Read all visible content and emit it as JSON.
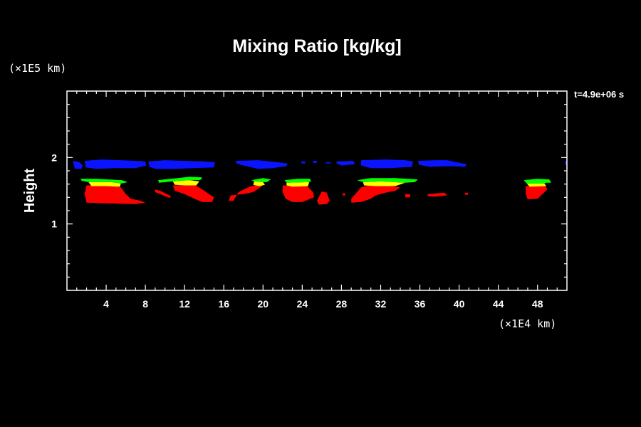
{
  "chart_data": {
    "type": "heatmap",
    "title": "Mixing Ratio [kg/kg]",
    "ylabel": "Height",
    "x_units": "(×1E4 km)",
    "y_units": "(×1E5 km)",
    "time_label": "t=4.9e+06 s",
    "xlim": [
      0,
      51
    ],
    "ylim": [
      0,
      3
    ],
    "x_ticks": [
      4,
      8,
      12,
      16,
      20,
      24,
      28,
      32,
      36,
      40,
      44,
      48
    ],
    "y_ticks": [
      1,
      2
    ],
    "colors": {
      "background": "#000000",
      "axes": "#ffffff",
      "level_blue": "#0a14ff",
      "level_red": "#ff0000",
      "level_yellow": "#ffff00",
      "level_green": "#00ff00"
    },
    "regions": [
      {
        "color": "#0a14ff",
        "polygon": [
          [
            0.6,
            1.95
          ],
          [
            1.3,
            1.93
          ],
          [
            1.6,
            1.88
          ],
          [
            1.5,
            1.83
          ],
          [
            0.8,
            1.83
          ]
        ]
      },
      {
        "color": "#0a14ff",
        "polygon": [
          [
            1.8,
            1.95
          ],
          [
            3.5,
            1.97
          ],
          [
            5.5,
            1.96
          ],
          [
            7.0,
            1.95
          ],
          [
            8.0,
            1.94
          ],
          [
            8.1,
            1.88
          ],
          [
            7.0,
            1.84
          ],
          [
            5.0,
            1.84
          ],
          [
            3.0,
            1.83
          ],
          [
            1.9,
            1.85
          ]
        ]
      },
      {
        "color": "#0a14ff",
        "polygon": [
          [
            8.3,
            1.94
          ],
          [
            10.0,
            1.96
          ],
          [
            12.0,
            1.95
          ],
          [
            14.0,
            1.94
          ],
          [
            15.1,
            1.93
          ],
          [
            15.0,
            1.85
          ],
          [
            13.0,
            1.84
          ],
          [
            11.0,
            1.83
          ],
          [
            9.0,
            1.83
          ],
          [
            8.4,
            1.86
          ]
        ]
      },
      {
        "color": "#0a14ff",
        "polygon": [
          [
            17.2,
            1.95
          ],
          [
            19.5,
            1.96
          ],
          [
            21.5,
            1.93
          ],
          [
            22.5,
            1.91
          ],
          [
            22.4,
            1.87
          ],
          [
            21.0,
            1.84
          ],
          [
            19.5,
            1.83
          ],
          [
            18.0,
            1.88
          ],
          [
            17.3,
            1.91
          ]
        ]
      },
      {
        "color": "#0a14ff",
        "polygon": [
          [
            23.9,
            1.94
          ],
          [
            24.3,
            1.94
          ],
          [
            24.3,
            1.91
          ],
          [
            23.9,
            1.91
          ]
        ]
      },
      {
        "color": "#0a14ff",
        "polygon": [
          [
            25.1,
            1.95
          ],
          [
            25.5,
            1.95
          ],
          [
            25.5,
            1.92
          ],
          [
            25.1,
            1.92
          ]
        ]
      },
      {
        "color": "#0a14ff",
        "polygon": [
          [
            26.4,
            1.93
          ],
          [
            26.9,
            1.93
          ],
          [
            26.9,
            1.91
          ],
          [
            26.4,
            1.91
          ]
        ]
      },
      {
        "color": "#0a14ff",
        "polygon": [
          [
            27.5,
            1.94
          ],
          [
            29.2,
            1.95
          ],
          [
            29.4,
            1.9
          ],
          [
            28.0,
            1.88
          ],
          [
            27.5,
            1.91
          ]
        ]
      },
      {
        "color": "#0a14ff",
        "polygon": [
          [
            30.0,
            1.96
          ],
          [
            32.5,
            1.97
          ],
          [
            34.5,
            1.96
          ],
          [
            35.3,
            1.94
          ],
          [
            35.2,
            1.86
          ],
          [
            33.0,
            1.84
          ],
          [
            31.0,
            1.84
          ],
          [
            30.0,
            1.88
          ]
        ]
      },
      {
        "color": "#0a14ff",
        "polygon": [
          [
            35.8,
            1.95
          ],
          [
            37.5,
            1.96
          ],
          [
            38.8,
            1.96
          ],
          [
            39.7,
            1.93
          ],
          [
            40.8,
            1.9
          ],
          [
            40.6,
            1.86
          ],
          [
            39.0,
            1.87
          ],
          [
            37.0,
            1.86
          ],
          [
            35.9,
            1.89
          ]
        ]
      },
      {
        "color": "#0a14ff",
        "polygon": [
          [
            50.8,
            1.95
          ],
          [
            51.0,
            1.95
          ],
          [
            51.0,
            1.89
          ],
          [
            50.8,
            1.89
          ]
        ]
      },
      {
        "color": "#ff0000",
        "polygon": [
          [
            2.0,
            1.58
          ],
          [
            4.5,
            1.59
          ],
          [
            5.5,
            1.55
          ],
          [
            6.0,
            1.45
          ],
          [
            6.5,
            1.38
          ],
          [
            7.5,
            1.35
          ],
          [
            8.0,
            1.32
          ],
          [
            7.0,
            1.3
          ],
          [
            4.0,
            1.31
          ],
          [
            2.0,
            1.32
          ],
          [
            1.8,
            1.45
          ]
        ]
      },
      {
        "color": "#ff0000",
        "polygon": [
          [
            9.0,
            1.52
          ],
          [
            9.5,
            1.5
          ],
          [
            10.6,
            1.42
          ],
          [
            10.5,
            1.39
          ],
          [
            9.5,
            1.45
          ],
          [
            9.0,
            1.48
          ]
        ]
      },
      {
        "color": "#ff0000",
        "polygon": [
          [
            10.8,
            1.58
          ],
          [
            13.0,
            1.59
          ],
          [
            13.8,
            1.52
          ],
          [
            14.5,
            1.45
          ],
          [
            15.0,
            1.4
          ],
          [
            14.8,
            1.33
          ],
          [
            13.8,
            1.33
          ],
          [
            13.0,
            1.38
          ],
          [
            12.0,
            1.45
          ],
          [
            11.0,
            1.5
          ]
        ]
      },
      {
        "color": "#ff0000",
        "polygon": [
          [
            16.7,
            1.43
          ],
          [
            18.0,
            1.45
          ],
          [
            19.0,
            1.48
          ],
          [
            19.5,
            1.53
          ],
          [
            20.0,
            1.58
          ],
          [
            19.5,
            1.6
          ],
          [
            18.5,
            1.55
          ],
          [
            17.5,
            1.48
          ],
          [
            17.0,
            1.35
          ],
          [
            16.5,
            1.35
          ]
        ]
      },
      {
        "color": "#ff0000",
        "polygon": [
          [
            22.0,
            1.58
          ],
          [
            24.5,
            1.57
          ],
          [
            25.1,
            1.48
          ],
          [
            25.2,
            1.4
          ],
          [
            24.0,
            1.33
          ],
          [
            23.0,
            1.33
          ],
          [
            22.3,
            1.38
          ],
          [
            22.0,
            1.48
          ]
        ]
      },
      {
        "color": "#ff0000",
        "polygon": [
          [
            26.0,
            1.49
          ],
          [
            26.5,
            1.47
          ],
          [
            26.8,
            1.35
          ],
          [
            26.5,
            1.3
          ],
          [
            25.7,
            1.29
          ],
          [
            25.5,
            1.35
          ]
        ]
      },
      {
        "color": "#ff0000",
        "polygon": [
          [
            28.1,
            1.46
          ],
          [
            28.4,
            1.46
          ],
          [
            28.4,
            1.43
          ],
          [
            28.1,
            1.43
          ]
        ]
      },
      {
        "color": "#ff0000",
        "polygon": [
          [
            30.0,
            1.55
          ],
          [
            31.0,
            1.59
          ],
          [
            33.0,
            1.57
          ],
          [
            34.0,
            1.55
          ],
          [
            33.5,
            1.5
          ],
          [
            32.5,
            1.47
          ],
          [
            31.5,
            1.43
          ],
          [
            31.0,
            1.38
          ],
          [
            30.0,
            1.33
          ],
          [
            29.0,
            1.32
          ],
          [
            29.0,
            1.38
          ],
          [
            29.6,
            1.48
          ]
        ]
      },
      {
        "color": "#ff0000",
        "polygon": [
          [
            34.5,
            1.45
          ],
          [
            35.0,
            1.45
          ],
          [
            35.0,
            1.4
          ],
          [
            34.5,
            1.4
          ]
        ]
      },
      {
        "color": "#ff0000",
        "polygon": [
          [
            36.8,
            1.45
          ],
          [
            38.5,
            1.47
          ],
          [
            38.8,
            1.43
          ],
          [
            37.5,
            1.41
          ],
          [
            36.8,
            1.42
          ]
        ]
      },
      {
        "color": "#ff0000",
        "polygon": [
          [
            40.6,
            1.47
          ],
          [
            40.9,
            1.47
          ],
          [
            40.9,
            1.44
          ],
          [
            40.6,
            1.44
          ]
        ]
      },
      {
        "color": "#ff0000",
        "polygon": [
          [
            46.8,
            1.57
          ],
          [
            48.8,
            1.57
          ],
          [
            49.0,
            1.52
          ],
          [
            48.5,
            1.45
          ],
          [
            48.0,
            1.38
          ],
          [
            47.0,
            1.37
          ],
          [
            46.8,
            1.45
          ]
        ]
      },
      {
        "color": "#ffff00",
        "polygon": [
          [
            2.2,
            1.63
          ],
          [
            4.5,
            1.63
          ],
          [
            5.5,
            1.61
          ],
          [
            5.4,
            1.56
          ],
          [
            4.0,
            1.57
          ],
          [
            2.5,
            1.57
          ]
        ]
      },
      {
        "color": "#ffff00",
        "polygon": [
          [
            10.8,
            1.64
          ],
          [
            12.5,
            1.66
          ],
          [
            13.5,
            1.64
          ],
          [
            13.2,
            1.58
          ],
          [
            12.0,
            1.58
          ],
          [
            11.0,
            1.59
          ]
        ]
      },
      {
        "color": "#ffff00",
        "polygon": [
          [
            19.1,
            1.64
          ],
          [
            20.0,
            1.63
          ],
          [
            20.2,
            1.59
          ],
          [
            19.6,
            1.57
          ],
          [
            19.0,
            1.59
          ]
        ]
      },
      {
        "color": "#ffff00",
        "polygon": [
          [
            22.4,
            1.62
          ],
          [
            24.7,
            1.63
          ],
          [
            24.6,
            1.57
          ],
          [
            23.0,
            1.56
          ],
          [
            22.4,
            1.58
          ]
        ]
      },
      {
        "color": "#ffff00",
        "polygon": [
          [
            30.2,
            1.63
          ],
          [
            32.0,
            1.64
          ],
          [
            34.5,
            1.62
          ],
          [
            33.5,
            1.57
          ],
          [
            31.5,
            1.57
          ],
          [
            30.3,
            1.58
          ]
        ]
      },
      {
        "color": "#ffff00",
        "polygon": [
          [
            46.9,
            1.61
          ],
          [
            48.7,
            1.61
          ],
          [
            48.9,
            1.57
          ],
          [
            47.2,
            1.56
          ]
        ]
      },
      {
        "color": "#00ff00",
        "polygon": [
          [
            1.4,
            1.68
          ],
          [
            3.0,
            1.68
          ],
          [
            5.6,
            1.66
          ],
          [
            6.2,
            1.63
          ],
          [
            5.6,
            1.61
          ],
          [
            4.5,
            1.63
          ],
          [
            2.2,
            1.63
          ],
          [
            1.5,
            1.65
          ]
        ]
      },
      {
        "color": "#00ff00",
        "polygon": [
          [
            9.3,
            1.66
          ],
          [
            12.5,
            1.71
          ],
          [
            13.8,
            1.7
          ],
          [
            13.6,
            1.66
          ],
          [
            12.5,
            1.66
          ],
          [
            10.8,
            1.64
          ],
          [
            9.4,
            1.62
          ]
        ]
      },
      {
        "color": "#00ff00",
        "polygon": [
          [
            18.8,
            1.66
          ],
          [
            20.0,
            1.69
          ],
          [
            20.8,
            1.67
          ],
          [
            20.4,
            1.63
          ],
          [
            20.0,
            1.63
          ],
          [
            19.1,
            1.64
          ]
        ]
      },
      {
        "color": "#00ff00",
        "polygon": [
          [
            22.2,
            1.66
          ],
          [
            23.5,
            1.68
          ],
          [
            24.8,
            1.68
          ],
          [
            24.9,
            1.64
          ],
          [
            24.7,
            1.63
          ],
          [
            22.4,
            1.62
          ]
        ]
      },
      {
        "color": "#00ff00",
        "polygon": [
          [
            29.6,
            1.66
          ],
          [
            31.0,
            1.69
          ],
          [
            33.5,
            1.69
          ],
          [
            35.8,
            1.67
          ],
          [
            35.5,
            1.63
          ],
          [
            34.5,
            1.62
          ],
          [
            32.0,
            1.64
          ],
          [
            30.2,
            1.63
          ]
        ]
      },
      {
        "color": "#00ff00",
        "polygon": [
          [
            46.6,
            1.66
          ],
          [
            48.0,
            1.68
          ],
          [
            49.2,
            1.67
          ],
          [
            49.4,
            1.62
          ],
          [
            48.9,
            1.62
          ],
          [
            48.7,
            1.61
          ],
          [
            46.9,
            1.61
          ]
        ]
      }
    ]
  }
}
